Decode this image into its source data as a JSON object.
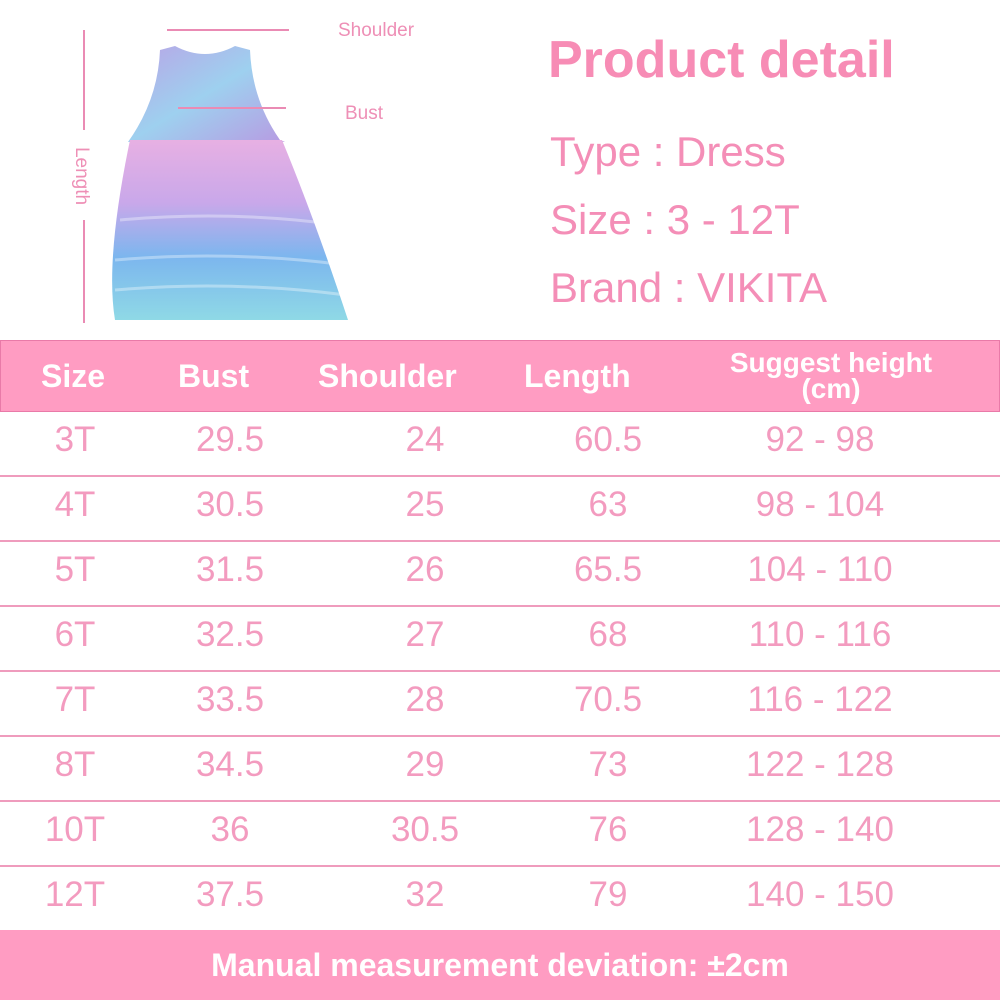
{
  "diagram_labels": {
    "shoulder": "Shoulder",
    "bust": "Bust",
    "length": "Length"
  },
  "product": {
    "title": "Product detail",
    "type": "Type : Dress",
    "size": "Size : 3 - 12T",
    "brand": "Brand : VIKITA"
  },
  "table": {
    "headers": [
      "Size",
      "Bust",
      "Shoulder",
      "Length",
      "Suggest height",
      "(cm)"
    ],
    "rows": [
      [
        "3T",
        "29.5",
        "24",
        "60.5",
        "92 - 98"
      ],
      [
        "4T",
        "30.5",
        "25",
        "63",
        "98 - 104"
      ],
      [
        "5T",
        "31.5",
        "26",
        "65.5",
        "104 - 110"
      ],
      [
        "6T",
        "32.5",
        "27",
        "68",
        "110 - 116"
      ],
      [
        "7T",
        "33.5",
        "28",
        "70.5",
        "116 - 122"
      ],
      [
        "8T",
        "34.5",
        "29",
        "73",
        "122 - 128"
      ],
      [
        "10T",
        "36",
        "30.5",
        "76",
        "128 - 140"
      ],
      [
        "12T",
        "37.5",
        "32",
        "79",
        "140 - 150"
      ]
    ]
  },
  "footer": "Manual measurement deviation: ±2cm",
  "colors": {
    "accent": "#ff9cc2",
    "text": "#f39bbf",
    "title": "#f78cb5"
  }
}
